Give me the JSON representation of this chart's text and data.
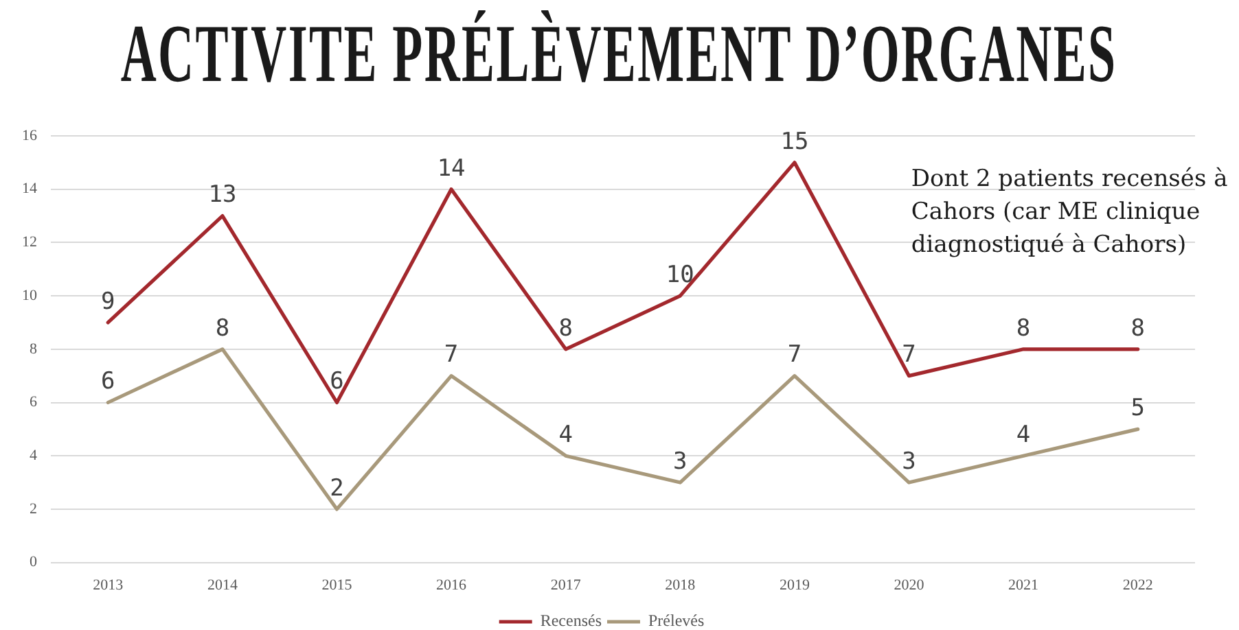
{
  "chart_data": {
    "type": "line",
    "title": "ACTIVITE PRÉLÈVEMENT D’ORGANES",
    "categories": [
      "2013",
      "2014",
      "2015",
      "2016",
      "2017",
      "2018",
      "2019",
      "2020",
      "2021",
      "2022"
    ],
    "series": [
      {
        "name": "Recensés",
        "color": "#a3282d",
        "values": [
          9,
          13,
          6,
          14,
          8,
          10,
          15,
          7,
          8,
          8
        ]
      },
      {
        "name": "Prélevés",
        "color": "#a8997b",
        "values": [
          6,
          8,
          2,
          7,
          4,
          3,
          7,
          3,
          4,
          5
        ]
      }
    ],
    "ylim": [
      0,
      16
    ],
    "yticks": [
      0,
      2,
      4,
      6,
      8,
      10,
      12,
      14,
      16
    ],
    "grid": "y",
    "legend": "bottom",
    "marker": "none",
    "line_style": "solid",
    "data_labels": true,
    "annotations": [
      "Dont 2 patients recensés à Cahors (car ME clinique diagnostiqué à Cahors)"
    ]
  }
}
